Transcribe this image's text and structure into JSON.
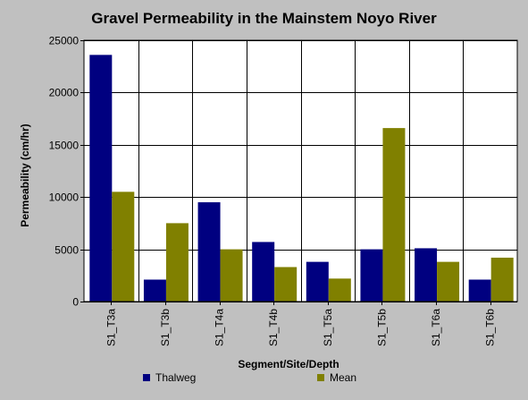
{
  "chart_data": {
    "type": "bar",
    "title": "Gravel Permeability in the Mainstem Noyo River",
    "xlabel": "Segment/Site/Depth",
    "ylabel": "Permeability (cm/hr)",
    "categories": [
      "S1_T3a",
      "S1_T3b",
      "S1_T4a",
      "S1_T4b",
      "S1_T5a",
      "S1_T5b",
      "S1_T6a",
      "S1_T6b"
    ],
    "series": [
      {
        "name": "Thalweg",
        "color": "#000080",
        "values": [
          23600,
          2100,
          9500,
          5700,
          3800,
          5000,
          5100,
          2100
        ]
      },
      {
        "name": "Mean",
        "color": "#808000",
        "values": [
          10500,
          7500,
          5000,
          3300,
          2200,
          16600,
          3800,
          4200
        ]
      }
    ],
    "yticks": [
      "0",
      "5000",
      "10000",
      "15000",
      "20000",
      "25000"
    ],
    "ylim": [
      0,
      25000
    ],
    "grid": true,
    "legend_position": "bottom"
  }
}
